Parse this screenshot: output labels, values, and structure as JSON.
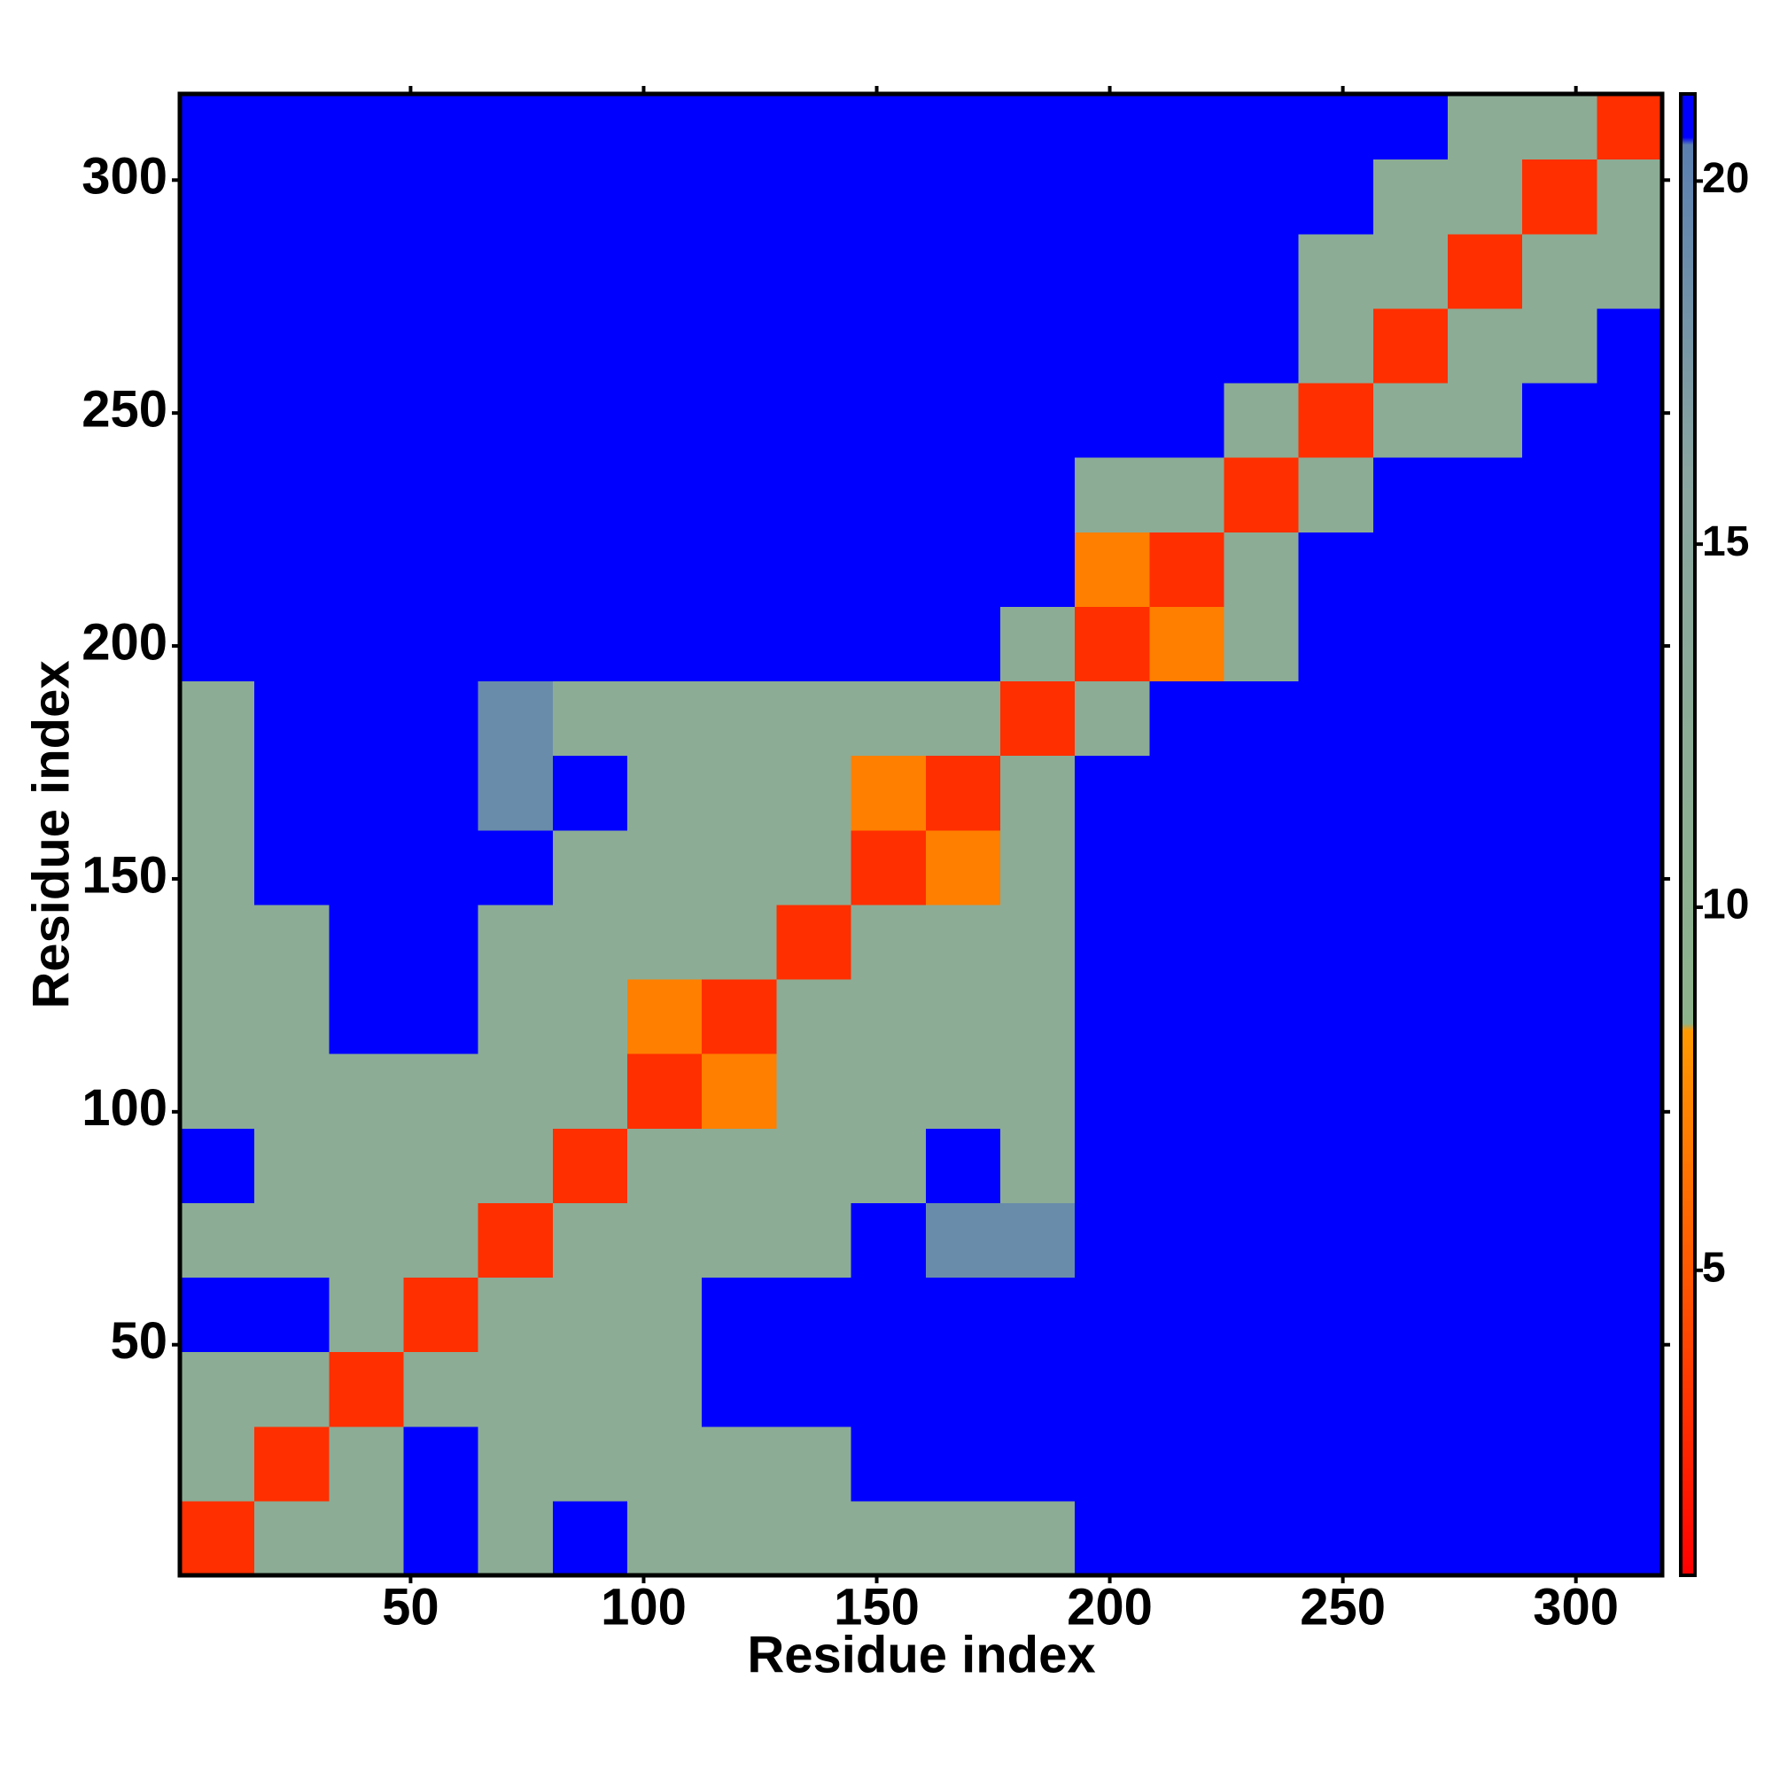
{
  "chart_data": {
    "type": "heatmap",
    "xlabel": "Residue index",
    "ylabel": "Residue index",
    "xbins": [
      0.5,
      16.5,
      32.5,
      48.5,
      64.5,
      80.5,
      96.5,
      112.5,
      128.5,
      144.5,
      160.5,
      176.5,
      192.5,
      208.5,
      224.5,
      240.5,
      256.5,
      272.5,
      288.5,
      304.5,
      318.5
    ],
    "ybins": [
      0.5,
      16.5,
      32.5,
      48.5,
      64.5,
      80.5,
      96.5,
      112.5,
      128.5,
      144.5,
      160.5,
      176.5,
      192.5,
      208.5,
      224.5,
      240.5,
      256.5,
      272.5,
      288.5,
      304.5,
      318.5
    ],
    "xlim": [
      0.5,
      318.5
    ],
    "ylim": [
      0.5,
      318.5
    ],
    "xticks": [
      50,
      100,
      150,
      200,
      250,
      300
    ],
    "yticks": [
      50,
      100,
      150,
      200,
      250,
      300
    ],
    "zlim": [
      0.8,
      21.2
    ],
    "zticks": [
      5,
      10,
      15,
      20
    ],
    "colorscale": [
      [
        0.8,
        "#ff0000"
      ],
      [
        4,
        "#ff4400"
      ],
      [
        8.3,
        "#ff9900"
      ],
      [
        8.4,
        "#8db38b"
      ],
      [
        16,
        "#8aa5a0"
      ],
      [
        20.5,
        "#5a7fb0"
      ],
      [
        20.6,
        "#0000ff"
      ],
      [
        21.2,
        "#0000ff"
      ]
    ],
    "z": [
      [
        3,
        12,
        12,
        21,
        12,
        21,
        12,
        12,
        12,
        12,
        12,
        12,
        21,
        21,
        21,
        21,
        21,
        21,
        21,
        21
      ],
      [
        12,
        3,
        12,
        21,
        12,
        12,
        12,
        12,
        12,
        21,
        21,
        21,
        21,
        21,
        21,
        21,
        21,
        21,
        21,
        21
      ],
      [
        12,
        12,
        3,
        12,
        12,
        12,
        12,
        21,
        21,
        21,
        21,
        21,
        21,
        21,
        21,
        21,
        21,
        21,
        21,
        21
      ],
      [
        21,
        21,
        12,
        3,
        12,
        12,
        12,
        21,
        21,
        21,
        21,
        21,
        21,
        21,
        21,
        21,
        21,
        21,
        21,
        21
      ],
      [
        12,
        12,
        12,
        12,
        3,
        12,
        12,
        12,
        12,
        21,
        19,
        19,
        21,
        21,
        21,
        21,
        21,
        21,
        21,
        21
      ],
      [
        21,
        12,
        12,
        12,
        12,
        3,
        12,
        12,
        12,
        12,
        21,
        12,
        21,
        21,
        21,
        21,
        21,
        21,
        21,
        21
      ],
      [
        12,
        12,
        12,
        12,
        12,
        12,
        3,
        7,
        12,
        12,
        12,
        12,
        21,
        21,
        21,
        21,
        21,
        21,
        21,
        21
      ],
      [
        12,
        12,
        21,
        21,
        12,
        12,
        7,
        3,
        12,
        12,
        12,
        12,
        21,
        21,
        21,
        21,
        21,
        21,
        21,
        21
      ],
      [
        12,
        12,
        21,
        21,
        12,
        12,
        12,
        12,
        3,
        12,
        12,
        12,
        21,
        21,
        21,
        21,
        21,
        21,
        21,
        21
      ],
      [
        12,
        21,
        21,
        21,
        21,
        12,
        12,
        12,
        12,
        3,
        7,
        12,
        21,
        21,
        21,
        21,
        21,
        21,
        21,
        21
      ],
      [
        12,
        21,
        21,
        21,
        19,
        21,
        12,
        12,
        12,
        7,
        3,
        12,
        21,
        21,
        21,
        21,
        21,
        21,
        21,
        21
      ],
      [
        12,
        21,
        21,
        21,
        19,
        12,
        12,
        12,
        12,
        12,
        12,
        3,
        12,
        21,
        21,
        21,
        21,
        21,
        21,
        21
      ],
      [
        21,
        21,
        21,
        21,
        21,
        21,
        21,
        21,
        21,
        21,
        21,
        12,
        3,
        7,
        12,
        21,
        21,
        21,
        21,
        21
      ],
      [
        21,
        21,
        21,
        21,
        21,
        21,
        21,
        21,
        21,
        21,
        21,
        21,
        7,
        3,
        12,
        21,
        21,
        21,
        21,
        21
      ],
      [
        21,
        21,
        21,
        21,
        21,
        21,
        21,
        21,
        21,
        21,
        21,
        21,
        12,
        12,
        3,
        12,
        21,
        21,
        21,
        21
      ],
      [
        21,
        21,
        21,
        21,
        21,
        21,
        21,
        21,
        21,
        21,
        21,
        21,
        21,
        21,
        12,
        3,
        12,
        12,
        21,
        21
      ],
      [
        21,
        21,
        21,
        21,
        21,
        21,
        21,
        21,
        21,
        21,
        21,
        21,
        21,
        21,
        21,
        12,
        3,
        12,
        12,
        21
      ],
      [
        21,
        21,
        21,
        21,
        21,
        21,
        21,
        21,
        21,
        21,
        21,
        21,
        21,
        21,
        21,
        12,
        12,
        3,
        12,
        12
      ],
      [
        21,
        21,
        21,
        21,
        21,
        21,
        21,
        21,
        21,
        21,
        21,
        21,
        21,
        21,
        21,
        21,
        12,
        12,
        3,
        12
      ],
      [
        21,
        21,
        21,
        21,
        21,
        21,
        21,
        21,
        21,
        21,
        21,
        21,
        21,
        21,
        21,
        21,
        21,
        12,
        12,
        3
      ]
    ]
  }
}
